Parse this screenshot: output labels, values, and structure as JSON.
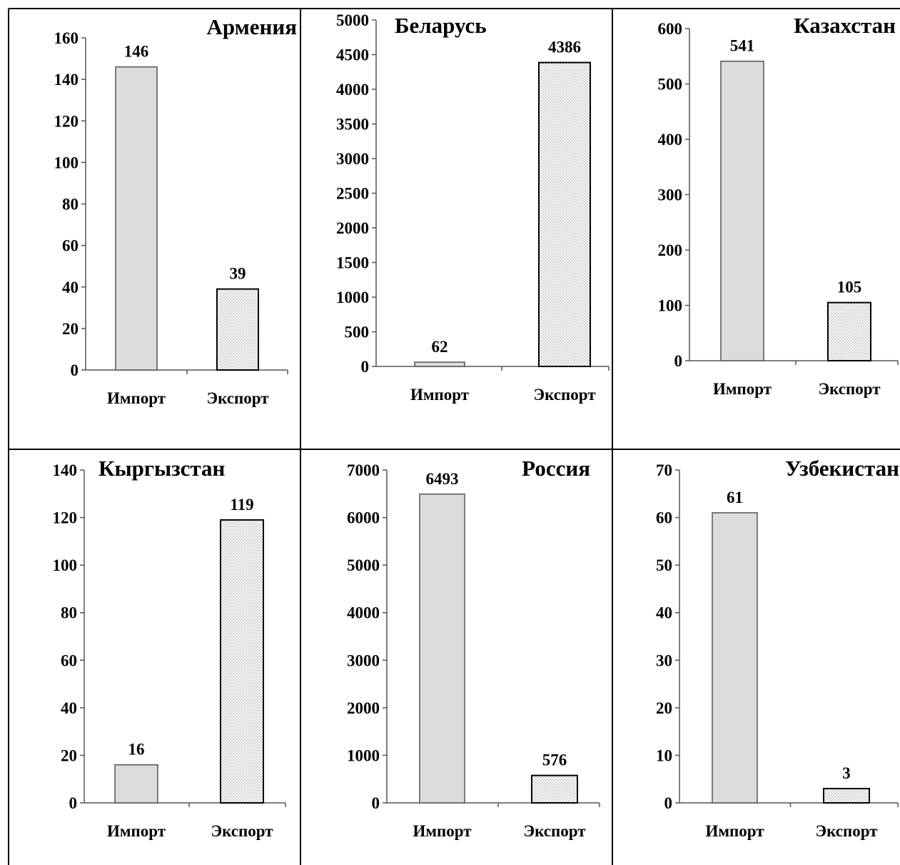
{
  "chart_data": [
    {
      "type": "bar",
      "title": "Армения",
      "categories": [
        "Импорт",
        "Экспорт"
      ],
      "values": [
        146,
        39
      ],
      "ylim": [
        0,
        160
      ],
      "yticks": [
        0,
        20,
        40,
        60,
        80,
        100,
        120,
        140,
        160
      ],
      "grid": false,
      "bar_fills": [
        "solid-gray",
        "dotted"
      ]
    },
    {
      "type": "bar",
      "title": "Беларусь",
      "categories": [
        "Импорт",
        "Экспорт"
      ],
      "values": [
        62,
        4386
      ],
      "ylim": [
        0,
        5000
      ],
      "yticks": [
        0,
        500,
        1000,
        1500,
        2000,
        2500,
        3000,
        3500,
        4000,
        4500,
        5000
      ],
      "grid": false,
      "bar_fills": [
        "solid-gray",
        "dotted"
      ]
    },
    {
      "type": "bar",
      "title": "Казахстан",
      "categories": [
        "Импорт",
        "Экспорт"
      ],
      "values": [
        541,
        105
      ],
      "ylim": [
        0,
        600
      ],
      "yticks": [
        0,
        100,
        200,
        300,
        400,
        500,
        600
      ],
      "grid": false,
      "bar_fills": [
        "solid-gray",
        "dotted"
      ]
    },
    {
      "type": "bar",
      "title": "Кыргызстан",
      "categories": [
        "Импорт",
        "Экспорт"
      ],
      "values": [
        16,
        119
      ],
      "ylim": [
        0,
        140
      ],
      "yticks": [
        0,
        20,
        40,
        60,
        80,
        100,
        120,
        140
      ],
      "grid": false,
      "bar_fills": [
        "solid-gray",
        "dotted"
      ]
    },
    {
      "type": "bar",
      "title": "Россия",
      "categories": [
        "Импорт",
        "Экспорт"
      ],
      "values": [
        6493,
        576
      ],
      "ylim": [
        0,
        7000
      ],
      "yticks": [
        0,
        1000,
        2000,
        3000,
        4000,
        5000,
        6000,
        7000
      ],
      "grid": false,
      "bar_fills": [
        "solid-gray",
        "dotted"
      ]
    },
    {
      "type": "bar",
      "title": "Узбекистан",
      "categories": [
        "Импорт",
        "Экспорт"
      ],
      "values": [
        61,
        3
      ],
      "ylim": [
        0,
        70
      ],
      "yticks": [
        0,
        10,
        20,
        30,
        40,
        50,
        60,
        70
      ],
      "grid": false,
      "bar_fills": [
        "solid-gray",
        "dotted"
      ]
    }
  ],
  "colors": {
    "import_bar": "#dcdcdc",
    "export_bar_base": "#ffffff",
    "export_bar_dots": "#8a8a8a",
    "axis": "#555555",
    "frame": "#000000"
  }
}
